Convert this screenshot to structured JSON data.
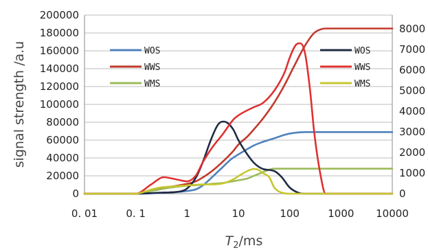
{
  "chart_data": {
    "type": "line",
    "title": "",
    "xlabel_italic": "T",
    "xlabel_sub": "2",
    "xlabel_rest": "/ms",
    "ylabel": "signal strength /a.u",
    "x_scale": "log",
    "xlim": [
      0.01,
      10000
    ],
    "ylim_left": [
      0,
      200000
    ],
    "ylim_right": [
      0,
      8666.67
    ],
    "grid": "horizontal",
    "x_ticks": [
      0.01,
      0.1,
      1,
      10,
      100,
      1000,
      10000
    ],
    "x_tick_labels": [
      "0. 01",
      "0. 1",
      "1",
      "10",
      "100",
      "1000",
      "10000"
    ],
    "y_left_ticks": [
      0,
      20000,
      40000,
      60000,
      80000,
      100000,
      120000,
      140000,
      160000,
      180000,
      200000
    ],
    "y_left_tick_labels": [
      "0",
      "20000",
      "40000",
      "60000",
      "80000",
      "100000",
      "120000",
      "140000",
      "160000",
      "180000",
      "200000"
    ],
    "y_right_ticks": [
      0,
      1000,
      2000,
      3000,
      4000,
      5000,
      6000,
      7000,
      8000
    ],
    "y_right_tick_labels": [
      "0",
      "1000",
      "2000",
      "3000",
      "4000",
      "5000",
      "6000",
      "7000",
      "8000"
    ],
    "legend_left": [
      "WOS",
      "WWS",
      "WMS"
    ],
    "legend_right": [
      "WOS",
      "WWS",
      "WMS"
    ],
    "series": [
      {
        "name": "WOS",
        "axis": "left",
        "kind": "cumulative",
        "color": "#4f81bd",
        "x": [
          0.01,
          0.1,
          0.2,
          0.5,
          1,
          1.5,
          2,
          3,
          5,
          7,
          10,
          15,
          20,
          30,
          50,
          80,
          120,
          200,
          400,
          1000,
          10000
        ],
        "y": [
          0,
          0,
          500,
          1500,
          3000,
          5000,
          9000,
          18000,
          30000,
          38000,
          44000,
          50000,
          54000,
          58000,
          62000,
          66000,
          68000,
          69000,
          69000,
          69000,
          69000
        ]
      },
      {
        "name": "WWS",
        "axis": "left",
        "kind": "cumulative",
        "color": "#c0392b",
        "x": [
          0.01,
          0.1,
          0.15,
          0.3,
          0.5,
          1,
          1.5,
          2,
          3,
          5,
          8,
          10,
          15,
          20,
          30,
          50,
          80,
          120,
          200,
          300,
          400,
          500,
          1000,
          10000
        ],
        "y": [
          0,
          0,
          2000,
          6000,
          8000,
          11000,
          14000,
          18000,
          25000,
          36000,
          48000,
          55000,
          64000,
          72000,
          84000,
          102000,
          122000,
          142000,
          166000,
          180000,
          184000,
          185000,
          185000,
          185000
        ]
      },
      {
        "name": "WMS",
        "axis": "left",
        "kind": "cumulative",
        "color": "#9bbb59",
        "x": [
          0.01,
          0.1,
          0.2,
          0.5,
          1,
          2,
          3,
          5,
          8,
          10,
          15,
          20,
          30,
          40,
          50,
          100,
          10000
        ],
        "y": [
          0,
          0,
          3000,
          7000,
          9000,
          10000,
          11000,
          12000,
          14000,
          15000,
          17000,
          20000,
          24000,
          27000,
          28000,
          28000,
          28000
        ]
      },
      {
        "name": "WOS",
        "axis": "right",
        "kind": "distribution",
        "color": "#1f2a44",
        "x": [
          0.01,
          0.1,
          0.3,
          0.7,
          1,
          1.5,
          2,
          3,
          4,
          5,
          6,
          8,
          10,
          15,
          20,
          30,
          50,
          70,
          100,
          150,
          200,
          300,
          10000
        ],
        "y": [
          0,
          0,
          50,
          100,
          250,
          800,
          1500,
          2700,
          3350,
          3500,
          3450,
          3100,
          2600,
          1900,
          1500,
          1200,
          1100,
          800,
          300,
          40,
          0,
          0,
          0
        ]
      },
      {
        "name": "WWS",
        "axis": "right",
        "kind": "distribution",
        "color": "#e03030",
        "x": [
          0.01,
          0.1,
          0.2,
          0.35,
          0.6,
          1,
          1.5,
          2,
          3,
          5,
          8,
          10,
          15,
          20,
          30,
          50,
          80,
          100,
          130,
          160,
          200,
          250,
          300,
          400,
          500,
          10000
        ],
        "y": [
          0,
          0,
          450,
          800,
          700,
          600,
          900,
          1500,
          2200,
          2900,
          3600,
          3800,
          4050,
          4200,
          4400,
          5000,
          5900,
          6600,
          7200,
          7300,
          6800,
          5000,
          3000,
          900,
          0,
          0
        ]
      },
      {
        "name": "WMS",
        "axis": "right",
        "kind": "distribution",
        "color": "#c6c62e",
        "x": [
          0.01,
          0.1,
          0.2,
          0.3,
          0.5,
          1,
          2,
          3,
          5,
          8,
          10,
          15,
          20,
          25,
          30,
          40,
          50,
          70,
          100,
          10000
        ],
        "y": [
          0,
          0,
          200,
          300,
          350,
          400,
          450,
          450,
          500,
          700,
          850,
          1100,
          1200,
          1150,
          1000,
          800,
          300,
          50,
          0,
          0
        ]
      }
    ]
  }
}
